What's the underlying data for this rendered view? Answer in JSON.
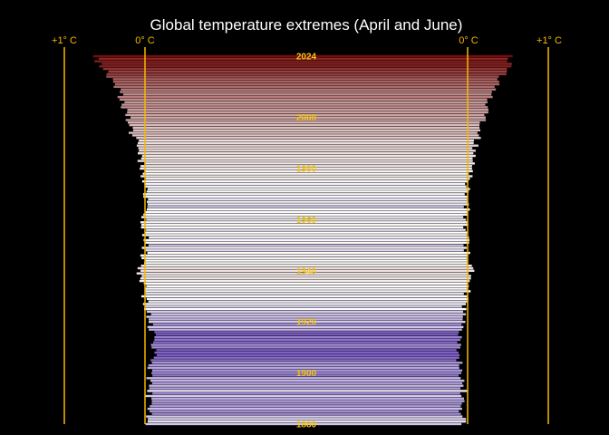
{
  "chart_data": {
    "type": "bar",
    "title": "Global temperature extremes (April and June)",
    "reference_labels": {
      "left_plus_one": "+1° C",
      "left_zero": "0° C",
      "right_zero": "0° C",
      "right_plus_one": "+1° C"
    },
    "orientation": "horizontal mirrored (left = April, right = June)",
    "xlim": [
      -0.25,
      1.0
    ],
    "year_range": [
      1880,
      2024
    ],
    "year_labels": [
      "2024",
      "2000",
      "1980",
      "1960",
      "1940",
      "1920",
      "1900",
      "1880"
    ],
    "color_scale": {
      "cold": "#7b5cc4",
      "neutral": "#ffffff",
      "warm": "#7a0c0c"
    },
    "series": [
      {
        "name": "April",
        "side": "left",
        "keyframes": [
          [
            1880,
            -0.02
          ],
          [
            1885,
            -0.05
          ],
          [
            1890,
            -0.04
          ],
          [
            1895,
            -0.07
          ],
          [
            1900,
            -0.05
          ],
          [
            1905,
            -0.1
          ],
          [
            1910,
            -0.12
          ],
          [
            1915,
            -0.09
          ],
          [
            1920,
            -0.06
          ],
          [
            1925,
            -0.03
          ],
          [
            1930,
            0.01
          ],
          [
            1935,
            0.02
          ],
          [
            1940,
            0.07
          ],
          [
            1945,
            0.03
          ],
          [
            1950,
            -0.01
          ],
          [
            1955,
            0.0
          ],
          [
            1960,
            0.02
          ],
          [
            1965,
            0.01
          ],
          [
            1970,
            0.0
          ],
          [
            1975,
            0.0
          ],
          [
            1980,
            0.04
          ],
          [
            1985,
            0.06
          ],
          [
            1990,
            0.1
          ],
          [
            1995,
            0.18
          ],
          [
            2000,
            0.22
          ],
          [
            2005,
            0.27
          ],
          [
            2010,
            0.32
          ],
          [
            2015,
            0.42
          ],
          [
            2020,
            0.55
          ],
          [
            2024,
            0.63
          ]
        ]
      },
      {
        "name": "June",
        "side": "right",
        "keyframes": [
          [
            1880,
            -0.04
          ],
          [
            1885,
            -0.07
          ],
          [
            1890,
            -0.05
          ],
          [
            1895,
            -0.05
          ],
          [
            1900,
            -0.09
          ],
          [
            1905,
            -0.1
          ],
          [
            1910,
            -0.12
          ],
          [
            1915,
            -0.09
          ],
          [
            1920,
            -0.06
          ],
          [
            1925,
            -0.03
          ],
          [
            1930,
            -0.01
          ],
          [
            1935,
            0.02
          ],
          [
            1940,
            0.05
          ],
          [
            1945,
            0.02
          ],
          [
            1950,
            -0.03
          ],
          [
            1955,
            -0.01
          ],
          [
            1960,
            -0.01
          ],
          [
            1965,
            -0.01
          ],
          [
            1970,
            -0.02
          ],
          [
            1975,
            0.02
          ],
          [
            1980,
            0.05
          ],
          [
            1985,
            0.08
          ],
          [
            1990,
            0.1
          ],
          [
            1995,
            0.16
          ],
          [
            2000,
            0.21
          ],
          [
            2005,
            0.26
          ],
          [
            2010,
            0.31
          ],
          [
            2015,
            0.4
          ],
          [
            2020,
            0.5
          ],
          [
            2024,
            0.56
          ]
        ]
      }
    ]
  }
}
